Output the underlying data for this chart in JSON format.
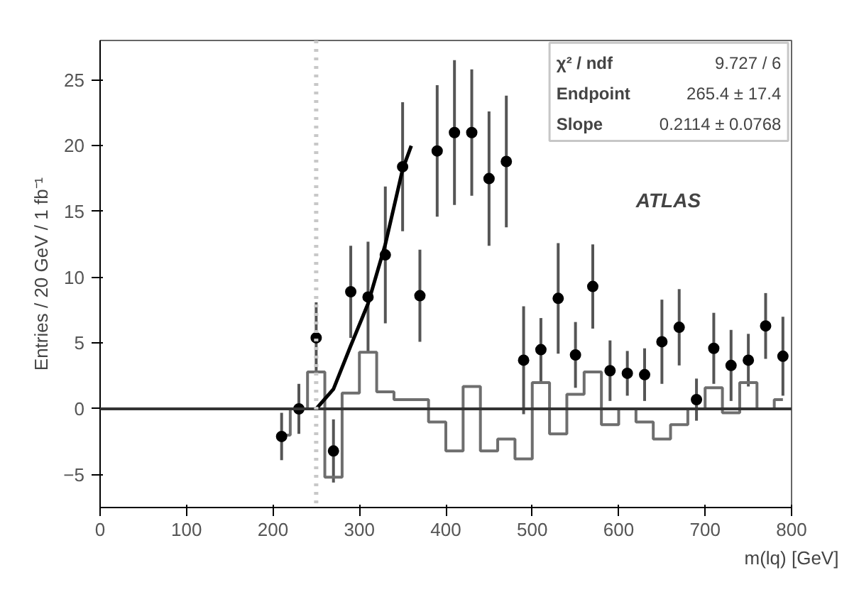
{
  "chart_data": {
    "type": "scatter",
    "xlabel": "m(lq) [GeV]",
    "ylabel": "Entries / 20 GeV / 1 fb⁻¹",
    "xlim": [
      0,
      800
    ],
    "ylim": [
      -7.5,
      28
    ],
    "xticks": [
      0,
      100,
      200,
      300,
      400,
      500,
      600,
      700,
      800
    ],
    "yticks": [
      -5,
      0,
      5,
      10,
      15,
      20,
      25
    ],
    "grid": false,
    "series": [
      {
        "type": "step",
        "color": "#6e6e6e",
        "x": [
          210,
          230,
          250,
          270,
          290,
          310,
          330,
          350,
          370,
          390,
          410,
          430,
          450,
          470,
          490,
          510,
          530,
          550,
          570,
          590,
          610,
          630,
          650,
          670,
          690,
          710,
          730,
          750,
          770,
          790
        ],
        "values": [
          -2.0,
          0.0,
          2.8,
          -5.2,
          1.2,
          4.3,
          1.3,
          0.7,
          0.7,
          -1.0,
          -3.2,
          1.7,
          -3.2,
          -2.3,
          -3.8,
          2.0,
          -1.9,
          1.1,
          2.8,
          -1.2,
          0.0,
          -1.0,
          -2.3,
          -1.2,
          0.0,
          1.6,
          -0.3,
          2.0,
          0.0,
          0.7
        ]
      },
      {
        "type": "line",
        "color": "#000000",
        "x": [
          250,
          270,
          290,
          310,
          330,
          350,
          360
        ],
        "values": [
          0.0,
          1.5,
          4.8,
          8.0,
          12.5,
          18.2,
          20.0
        ]
      },
      {
        "marker": "circle",
        "color": "#000000",
        "x": [
          210,
          230,
          250,
          270,
          290,
          310,
          330,
          350,
          370,
          390,
          410,
          430,
          450,
          470,
          490,
          510,
          530,
          550,
          570,
          590,
          610,
          630,
          650,
          670,
          690,
          710,
          730,
          750,
          770,
          790
        ],
        "values": [
          -2.1,
          0.0,
          5.4,
          -3.2,
          8.9,
          8.5,
          11.7,
          18.4,
          8.6,
          19.6,
          21.0,
          21.0,
          17.5,
          18.8,
          3.7,
          4.5,
          8.4,
          4.1,
          9.3,
          2.9,
          2.7,
          2.6,
          5.1,
          6.2,
          0.7,
          4.6,
          3.3,
          3.7,
          6.3,
          4.0
        ],
        "errors": [
          1.8,
          1.9,
          2.7,
          2.4,
          3.5,
          4.2,
          5.2,
          4.9,
          3.5,
          5.0,
          5.5,
          4.8,
          5.1,
          5.0,
          4.1,
          2.4,
          4.2,
          2.5,
          3.2,
          2.3,
          1.7,
          2.0,
          3.2,
          2.9,
          1.6,
          2.7,
          2.7,
          2.0,
          2.5,
          3.0
        ]
      }
    ],
    "ref_lines": [
      {
        "axis": "y",
        "value": 0,
        "color": "#333333",
        "line_style": "solid"
      },
      {
        "axis": "x",
        "value": 250,
        "color": "#c8c8c8",
        "line_style": "dotted"
      }
    ],
    "annotations": [
      "χ² / ndf  9.727 / 6",
      "Endpoint  265.4 ± 17.4",
      "Slope  0.2114 ± 0.0768",
      "ATLAS"
    ]
  }
}
